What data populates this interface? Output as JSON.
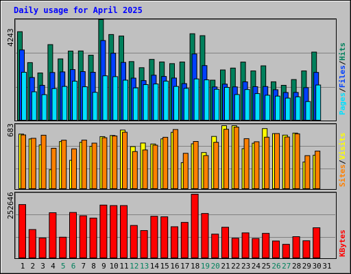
{
  "title": "Daily usage for April 2025",
  "colors": {
    "background": "#c0c0c0",
    "title_text": "#0000ff",
    "hits": "#00805c",
    "files": "#0040ff",
    "pages": "#00e0ff",
    "visits": "#ffff00",
    "sites": "#ff8000",
    "kbytes": "#ff0000",
    "weekend_label": "#00805c",
    "weekday_label": "#000000"
  },
  "legend": {
    "top": {
      "pages": "Pages",
      "files": "Files",
      "hits": "Hits",
      "sep": "/"
    },
    "middle": {
      "sites": "Sites",
      "visits": "Visits",
      "sep": "/"
    },
    "bottom": {
      "kbytes": "KBytes"
    }
  },
  "chart_data": [
    {
      "type": "bar",
      "panel": "hits-files-pages",
      "ymax_label": "4243",
      "ylim": [
        0,
        4243
      ],
      "categories": [
        "1",
        "2",
        "3",
        "4",
        "5",
        "6",
        "7",
        "8",
        "9",
        "10",
        "11",
        "12",
        "13",
        "14",
        "15",
        "16",
        "17",
        "18",
        "19",
        "20",
        "21",
        "22",
        "23",
        "24",
        "25",
        "26",
        "27",
        "28",
        "29",
        "30",
        "31"
      ],
      "weekend_days": [
        "5",
        "6",
        "12",
        "13",
        "19",
        "20",
        "26",
        "27"
      ],
      "series": [
        {
          "name": "Hits",
          "values": [
            3734,
            2440,
            2007,
            3194,
            2596,
            2924,
            2928,
            2750,
            4243,
            3616,
            3553,
            2484,
            2228,
            2575,
            2468,
            2398,
            2466,
            3649,
            3568,
            1706,
            2134,
            2212,
            2463,
            2093,
            2306,
            1637,
            1490,
            1731,
            2093,
            2881,
            null
          ]
        },
        {
          "name": "Files",
          "values": [
            2970,
            1816,
            1489,
            2026,
            2052,
            2148,
            2065,
            2036,
            3364,
            2834,
            2448,
            1791,
            1687,
            1913,
            1861,
            1794,
            1562,
            2802,
            2316,
            1423,
            1540,
            1425,
            1635,
            1435,
            1440,
            1305,
            1189,
            1192,
            1392,
            2030,
            null
          ]
        },
        {
          "name": "Pages",
          "values": [
            2036,
            1219,
            1099,
            1353,
            1444,
            1664,
            1430,
            1196,
            1887,
            1853,
            1706,
            1382,
            1520,
            1547,
            1666,
            1444,
            1363,
            1757,
            1719,
            1324,
            1405,
            1104,
            1314,
            1144,
            1076,
            1039,
            956,
            1007,
            811,
            1503,
            null
          ]
        }
      ]
    },
    {
      "type": "bar",
      "panel": "visits-sites",
      "ymax_label": "683",
      "ylim": [
        0,
        683
      ],
      "categories": [
        "1",
        "2",
        "3",
        "4",
        "5",
        "6",
        "7",
        "8",
        "9",
        "10",
        "11",
        "12",
        "13",
        "14",
        "15",
        "16",
        "17",
        "18",
        "19",
        "20",
        "21",
        "22",
        "23",
        "24",
        "25",
        "26",
        "27",
        "28",
        "29",
        "30",
        "31"
      ],
      "series": [
        {
          "name": "Visits",
          "values": [
            593,
            541,
            477,
            211,
            513,
            312,
            505,
            462,
            566,
            578,
            636,
            459,
            497,
            487,
            542,
            612,
            287,
            489,
            395,
            568,
            683,
            683,
            437,
            495,
            652,
            598,
            582,
            604,
            294,
            366,
            null
          ]
        },
        {
          "name": "Sites",
          "values": [
            584,
            548,
            581,
            441,
            528,
            435,
            529,
            496,
            554,
            573,
            613,
            406,
            423,
            474,
            559,
            642,
            387,
            514,
            363,
            505,
            645,
            668,
            544,
            511,
            560,
            599,
            562,
            596,
            362,
            411,
            null
          ]
        }
      ]
    },
    {
      "type": "bar",
      "panel": "kbytes",
      "ymax_label": "252646",
      "ylim": [
        0,
        252646
      ],
      "categories": [
        "1",
        "2",
        "3",
        "4",
        "5",
        "6",
        "7",
        "8",
        "9",
        "10",
        "11",
        "12",
        "13",
        "14",
        "15",
        "16",
        "17",
        "18",
        "19",
        "20",
        "21",
        "22",
        "23",
        "24",
        "25",
        "26",
        "27",
        "28",
        "29",
        "30",
        "31"
      ],
      "series": [
        {
          "name": "KBytes",
          "values": [
            212000,
            114000,
            81000,
            180000,
            84000,
            181000,
            168000,
            159000,
            210000,
            208000,
            208000,
            130000,
            110000,
            166000,
            164000,
            125000,
            142000,
            252646,
            177000,
            96000,
            123000,
            80000,
            101000,
            79000,
            99000,
            69000,
            56000,
            86000,
            70000,
            121000,
            null
          ]
        }
      ]
    }
  ]
}
